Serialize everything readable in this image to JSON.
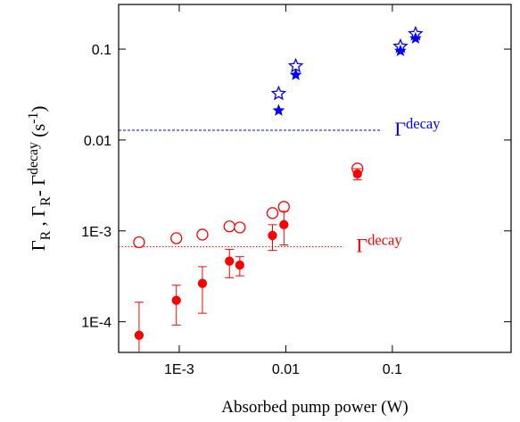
{
  "chart_data": {
    "type": "scatter",
    "xlabel": "Absorbed pump power (W)",
    "ylabel": [
      {
        "text": "Γ"
      },
      {
        "text": "R",
        "shift": "sub"
      },
      {
        "text": " ,    "
      },
      {
        "text": "Γ"
      },
      {
        "text": "R",
        "shift": "sub"
      },
      {
        "text": "- "
      },
      {
        "text": "Γ"
      },
      {
        "text": "decay",
        "shift": "sup"
      },
      {
        "text": "  (s"
      },
      {
        "text": "-1",
        "shift": "sup"
      },
      {
        "text": ")"
      }
    ],
    "log_x": true,
    "log_y": true,
    "xlim": [
      0.00027,
      1.3
    ],
    "ylim": [
      4.6e-05,
      0.31
    ],
    "xticks": [
      {
        "value": 0.001,
        "label": "1E-3"
      },
      0.01,
      0.1
    ],
    "yticks": [
      {
        "value": 0.0001,
        "label": "1E-4"
      },
      {
        "value": 0.001,
        "label": "1E-3"
      },
      0.01,
      0.1
    ],
    "series": [
      {
        "color": "#ff0000",
        "marker": "circle",
        "filled": false,
        "x": [
          0.00042,
          0.00094,
          0.00165,
          0.00296,
          0.0037,
          0.0075,
          0.0096,
          0.047
        ],
        "values": [
          0.00075,
          0.00083,
          0.00091,
          0.00112,
          0.00109,
          0.00157,
          0.00184,
          0.00485
        ]
      },
      {
        "color": "#ff0000",
        "marker": "circle",
        "filled": true,
        "x": [
          0.00042,
          0.00094,
          0.00165,
          0.00296,
          0.0037,
          0.0075,
          0.0096,
          0.047
        ],
        "values": [
          7.1e-05,
          0.000172,
          0.000264,
          0.000465,
          0.00042,
          0.00089,
          0.00117,
          0.00424
        ],
        "errors": [
          9.3e-05,
          8e-05,
          0.00014,
          0.00016,
          0.0001,
          0.00028,
          0.00047,
          0.0006
        ]
      },
      {
        "color": "#0000ff",
        "marker": "star",
        "filled": false,
        "x": [
          0.00857,
          0.0124,
          0.119,
          0.165
        ],
        "values": [
          0.0324,
          0.0652,
          0.107,
          0.147
        ]
      },
      {
        "color": "#0000ff",
        "marker": "star",
        "filled": true,
        "x": [
          0.00857,
          0.0124,
          0.119,
          0.165
        ],
        "values": [
          0.0211,
          0.052,
          0.0955,
          0.131
        ]
      }
    ],
    "reference_lines": [
      {
        "value": 0.0128,
        "x_end": 0.08,
        "color": "#0000ff",
        "style": "dashed",
        "label": [
          {
            "text": "Γ"
          },
          {
            "text": "decay",
            "shift": "sup"
          }
        ]
      },
      {
        "value": 0.00067,
        "x_end": 0.035,
        "color": "#ff0000",
        "style": "dotted",
        "label": [
          {
            "text": "Γ"
          },
          {
            "text": "decay",
            "shift": "sup"
          }
        ]
      }
    ]
  }
}
